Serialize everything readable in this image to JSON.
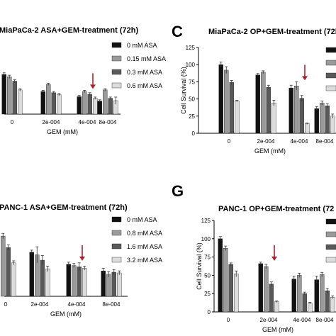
{
  "letters": {
    "top_right": "C",
    "bottom_right": "G"
  },
  "colors": {
    "c0": "#111111",
    "c1": "#9a9a9a",
    "c2": "#595959",
    "c3": "#dcdcdc",
    "arrow": "#b0202a",
    "axis": "#000000",
    "error": "#333333"
  },
  "chart_data": [
    {
      "type": "bar",
      "title": "MiaPaCa-2 ASA+GEM-treatment (72h)",
      "xlabel": "GEM (mM)",
      "ylabel": "",
      "categories": [
        "0",
        "2e-004",
        "4e-004",
        "8e-004"
      ],
      "ylim": [
        0,
        125
      ],
      "yticks": [],
      "series": [
        {
          "name": "0 mM ASA",
          "values": [
            100,
            57,
            44,
            33
          ],
          "errors": [
            4,
            3,
            3,
            3
          ]
        },
        {
          "name": "0.15 mM ASA",
          "values": [
            94,
            75,
            57,
            61
          ],
          "errors": [
            4,
            3,
            3,
            3
          ]
        },
        {
          "name": "0.3 mM ASA",
          "values": [
            83,
            54,
            50,
            40
          ],
          "errors": [
            4,
            3,
            4,
            3
          ]
        },
        {
          "name": "0.6 mM ASA",
          "values": [
            61,
            49,
            40,
            34
          ],
          "errors": [
            3,
            3,
            3,
            9
          ]
        }
      ],
      "arrow_category": "4e-004",
      "legend": "top-right"
    },
    {
      "type": "bar",
      "title": "MiaPaCa-2 OP+GEM-treatment (72h)",
      "xlabel": "GEM (mM)",
      "ylabel": "Cell Survival (%)",
      "categories": [
        "0",
        "2e-004",
        "4e-004",
        "8e-004"
      ],
      "ylim": [
        0,
        125
      ],
      "yticks": [
        "0",
        "25",
        "50",
        "75",
        "100",
        "125"
      ],
      "series": [
        {
          "name": "",
          "values": [
            100,
            85,
            66,
            36
          ],
          "errors": [
            4,
            2,
            4,
            3
          ]
        },
        {
          "name": "",
          "values": [
            92,
            89,
            69,
            44
          ],
          "errors": [
            5,
            2,
            6,
            3
          ]
        },
        {
          "name": "",
          "values": [
            74,
            67,
            51,
            40
          ],
          "errors": [
            3,
            3,
            4,
            3
          ]
        },
        {
          "name": "",
          "values": [
            47,
            44,
            14,
            25
          ],
          "errors": [
            1,
            4,
            1,
            3
          ]
        }
      ],
      "arrow_category": "4e-004",
      "legend": "top-right"
    },
    {
      "type": "bar",
      "title": "PANC-1 ASA+GEM-treatment (72h)",
      "xlabel": "GEM (mM)",
      "ylabel": "",
      "categories": [
        "0",
        "2e-004",
        "4e-004",
        "8e-004"
      ],
      "ylim": [
        0,
        125
      ],
      "yticks": [],
      "series": [
        {
          "name": "0 mM ASA",
          "values": [
            100,
            66,
            48,
            38
          ],
          "errors": [
            4,
            3,
            3,
            4
          ]
        },
        {
          "name": "0.8 mM ASA",
          "values": [
            90,
            62,
            46,
            33
          ],
          "errors": [
            4,
            12,
            3,
            4
          ]
        },
        {
          "name": "1.6 mM ASA",
          "values": [
            73,
            54,
            44,
            36
          ],
          "errors": [
            4,
            7,
            6,
            4
          ]
        },
        {
          "name": "3.2 mM ASA",
          "values": [
            50,
            41,
            42,
            35
          ],
          "errors": [
            3,
            4,
            3,
            3
          ]
        }
      ],
      "arrow_category": "4e-004",
      "legend": "top-right"
    },
    {
      "type": "bar",
      "title": "PANC-1 OP+GEM-treatment (72",
      "xlabel": "GEM (mM)",
      "ylabel": "Cell Survival (%)",
      "categories": [
        "0",
        "2e-004",
        "4e-004",
        "8e-004"
      ],
      "ylim": [
        0,
        125
      ],
      "yticks": [
        "0",
        "25",
        "50",
        "75",
        "100",
        "125"
      ],
      "series": [
        {
          "name": "",
          "values": [
            100,
            66,
            45,
            44
          ],
          "errors": [
            3,
            2,
            4,
            5
          ]
        },
        {
          "name": "",
          "values": [
            87,
            62,
            50,
            51
          ],
          "errors": [
            3,
            3,
            3,
            3
          ]
        },
        {
          "name": "",
          "values": [
            65,
            38,
            25,
            29
          ],
          "errors": [
            2,
            3,
            2,
            3
          ]
        },
        {
          "name": "",
          "values": [
            52,
            14,
            12,
            20
          ],
          "errors": [
            4,
            1,
            1,
            2
          ]
        }
      ],
      "arrow_category": "2e-004",
      "legend": "top-right"
    }
  ]
}
